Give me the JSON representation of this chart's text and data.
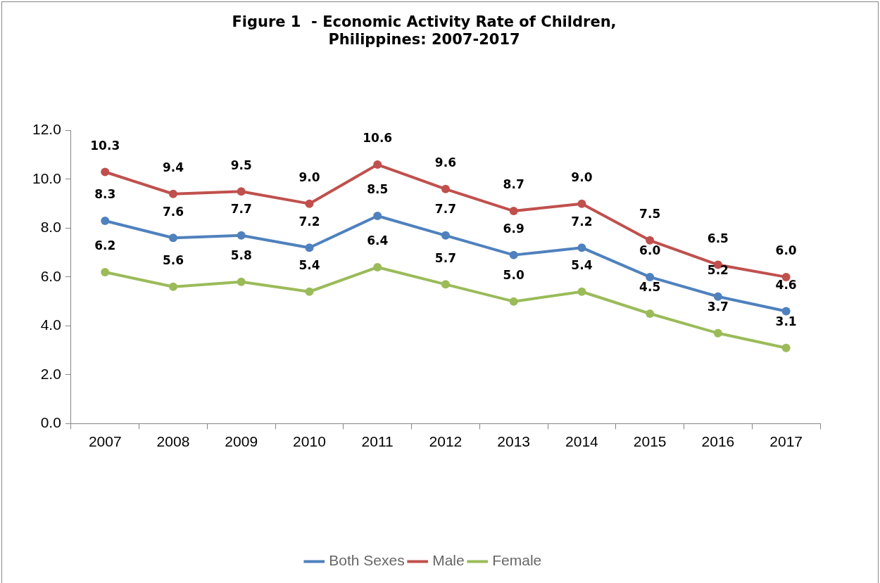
{
  "chart_data": {
    "type": "line",
    "title": "Figure 1  - Economic Activity Rate of Children,\nPhilippines: 2007-2017",
    "categories": [
      "2007",
      "2008",
      "2009",
      "2010",
      "2011",
      "2012",
      "2013",
      "2014",
      "2015",
      "2016",
      "2017"
    ],
    "series": [
      {
        "name": "Both Sexes",
        "color": "#4f81bd",
        "values": [
          8.3,
          7.6,
          7.7,
          7.2,
          8.5,
          7.7,
          6.9,
          7.2,
          6.0,
          5.2,
          4.6
        ],
        "value_labels": [
          "8.3",
          "7.6",
          "7.7",
          "7.2",
          "8.5",
          "7.7",
          "6.9",
          "7.2",
          "6.0",
          "5.2",
          "4.6"
        ]
      },
      {
        "name": "Male",
        "color": "#c0504d",
        "values": [
          10.3,
          9.4,
          9.5,
          9.0,
          10.6,
          9.6,
          8.7,
          9.0,
          7.5,
          6.5,
          6.0
        ],
        "value_labels": [
          "10.3",
          "9.4",
          "9.5",
          "9.0",
          "10.6",
          "9.6",
          "8.7",
          "9.0",
          "7.5",
          "6.5",
          "6.0"
        ]
      },
      {
        "name": "Female",
        "color": "#9bbb59",
        "values": [
          6.2,
          5.6,
          5.8,
          5.4,
          6.4,
          5.7,
          5.0,
          5.4,
          4.5,
          3.7,
          3.1
        ],
        "value_labels": [
          "6.2",
          "5.6",
          "5.8",
          "5.4",
          "6.4",
          "5.7",
          "5.0",
          "5.4",
          "4.5",
          "3.7",
          "3.1"
        ]
      }
    ],
    "ylim": [
      0,
      12
    ],
    "yticks": [
      {
        "value": 0,
        "label": "0.0"
      },
      {
        "value": 2,
        "label": "2.0"
      },
      {
        "value": 4,
        "label": "4.0"
      },
      {
        "value": 6,
        "label": "6.0"
      },
      {
        "value": 8,
        "label": "8.0"
      },
      {
        "value": 10,
        "label": "10.0"
      },
      {
        "value": 12,
        "label": "12.0"
      }
    ],
    "grid": false,
    "legend": "bottom",
    "marker": "circle",
    "line_style": "solid"
  }
}
